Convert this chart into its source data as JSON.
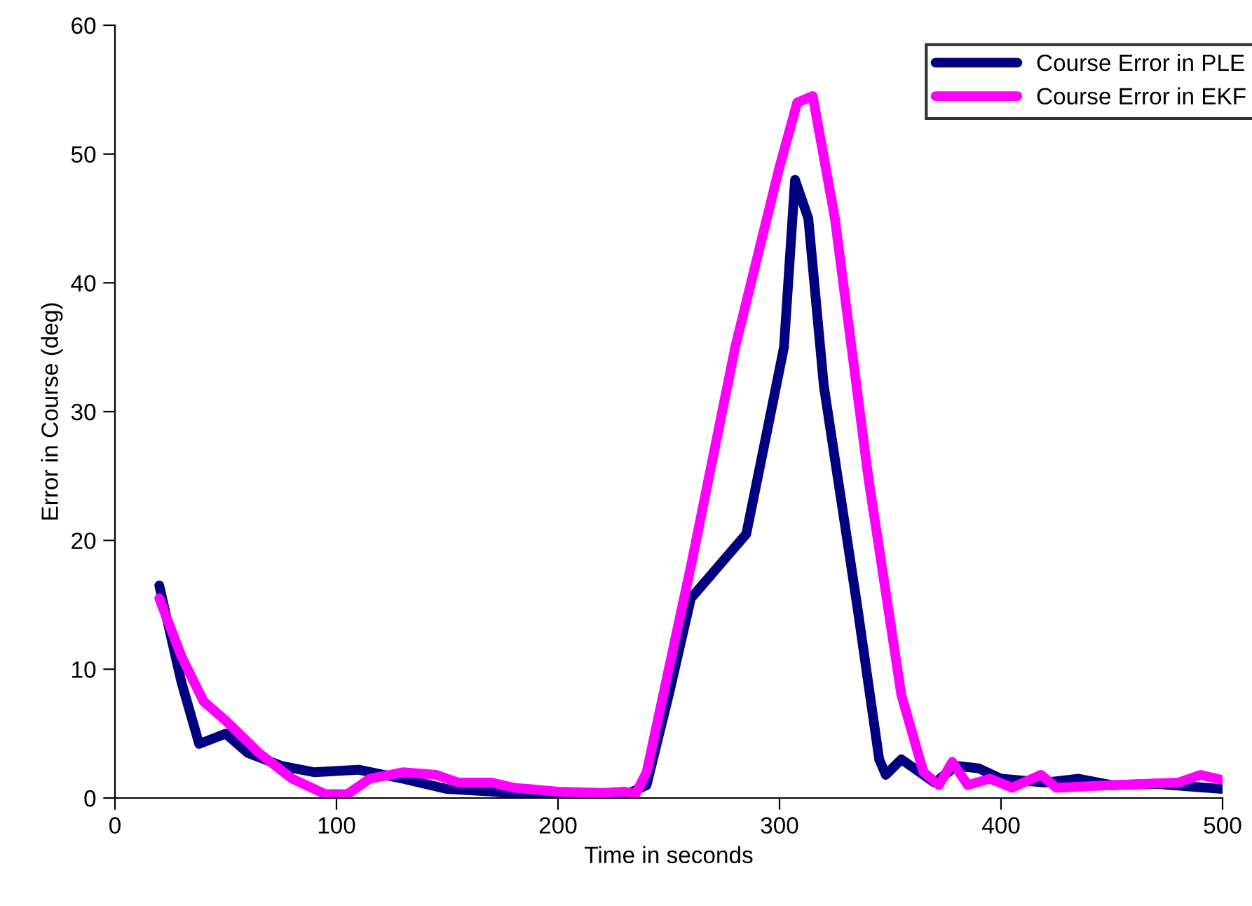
{
  "chart_data": {
    "type": "line",
    "xlabel": "Time in seconds",
    "ylabel": "Error in Course (deg)",
    "xlim": [
      0,
      500
    ],
    "xticks": [
      0,
      100,
      200,
      300,
      400,
      500
    ],
    "ylim": [
      0,
      60
    ],
    "yticks": [
      0,
      10,
      20,
      30,
      40,
      50,
      60
    ],
    "grid": false,
    "legend": "top right",
    "marker": "none",
    "line_style": "solid",
    "series": [
      {
        "name": "Course Error in PLE",
        "color": "#000080",
        "x": [
          20,
          30,
          38,
          50,
          60,
          75,
          90,
          110,
          130,
          150,
          170,
          190,
          230,
          240,
          250,
          260,
          270,
          285,
          295,
          302,
          307,
          313,
          320,
          335,
          345,
          348,
          355,
          370,
          380,
          390,
          400,
          420,
          435,
          450,
          470,
          485,
          500
        ],
        "values": [
          16.5,
          9,
          4.2,
          5,
          3.5,
          2.5,
          2,
          2.2,
          1.5,
          0.7,
          0.5,
          0.2,
          0.2,
          1,
          8,
          15.5,
          17.5,
          20.5,
          29,
          35,
          48,
          45,
          32,
          15,
          3,
          1.8,
          3,
          1.2,
          2.5,
          2.3,
          1.5,
          1.2,
          1.5,
          1,
          1.1,
          0.9,
          0.7
        ]
      },
      {
        "name": "Course Error in EKF",
        "color": "#ff00ff",
        "x": [
          20,
          30,
          40,
          50,
          65,
          80,
          95,
          105,
          115,
          130,
          145,
          155,
          170,
          180,
          200,
          220,
          230,
          235,
          240,
          250,
          260,
          280,
          300,
          308,
          315,
          325,
          340,
          355,
          365,
          372,
          378,
          385,
          395,
          405,
          418,
          425,
          450,
          480,
          490,
          500
        ],
        "values": [
          15.5,
          11,
          7.5,
          6,
          3.5,
          1.5,
          0.3,
          0.3,
          1.5,
          2,
          1.8,
          1.2,
          1.2,
          0.8,
          0.5,
          0.4,
          0.5,
          0.3,
          2,
          10,
          18,
          35,
          49,
          54,
          54.5,
          45,
          25,
          8,
          2,
          1,
          2.8,
          1,
          1.5,
          0.8,
          1.8,
          0.8,
          1,
          1.2,
          1.8,
          1.4
        ]
      }
    ]
  }
}
